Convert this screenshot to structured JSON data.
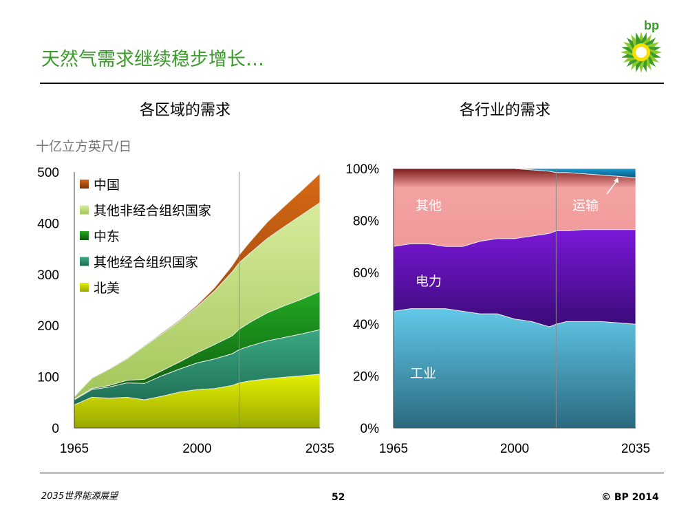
{
  "slide": {
    "title": "天然气需求继续稳步增长…",
    "page_number": "52",
    "footer_left": "2035世界能源展望",
    "footer_right": "© BP 2014",
    "logo_text": "bp"
  },
  "colors": {
    "title_green": "#3a9a2a",
    "china": "#cc5a10",
    "other_non_oecd": "#c6e28a",
    "middle_east": "#1f9a1f",
    "other_oecd": "#2f9a78",
    "north_america": "#d6e600",
    "transport": "#1a8fc0",
    "other_sector": "#f3a0a0",
    "power": "#6a10c8",
    "industry": "#5cc0e0"
  },
  "chart_data": [
    {
      "type": "area",
      "stacked": true,
      "title": "各区域的需求",
      "ylabel": "十亿立方英尺/日",
      "xlabel": "",
      "x": [
        1965,
        1970,
        1975,
        1980,
        1985,
        1990,
        1995,
        2000,
        2005,
        2010,
        2012,
        2015,
        2020,
        2025,
        2030,
        2035
      ],
      "xticks": [
        "1965",
        "2000",
        "2035"
      ],
      "ylim": [
        0,
        500
      ],
      "yticks": [
        0,
        100,
        200,
        300,
        400,
        500
      ],
      "forecast_start": 2012,
      "series": [
        {
          "name": "北美",
          "values": [
            45,
            60,
            58,
            60,
            55,
            62,
            70,
            75,
            77,
            83,
            88,
            92,
            96,
            99,
            102,
            105
          ]
        },
        {
          "name": "其他经合组织国家",
          "values": [
            10,
            15,
            22,
            28,
            32,
            40,
            45,
            52,
            58,
            62,
            65,
            68,
            74,
            78,
            82,
            87
          ]
        },
        {
          "name": "中东",
          "values": [
            1,
            2,
            3,
            5,
            8,
            10,
            14,
            20,
            28,
            35,
            40,
            46,
            55,
            62,
            68,
            75
          ]
        },
        {
          "name": "其他非经合组织国家",
          "values": [
            5,
            20,
            32,
            42,
            65,
            72,
            80,
            90,
            105,
            125,
            130,
            135,
            145,
            155,
            165,
            173
          ]
        },
        {
          "name": "中国",
          "values": [
            0,
            0,
            0,
            1,
            1,
            2,
            2,
            3,
            6,
            12,
            15,
            22,
            32,
            40,
            48,
            57
          ]
        }
      ],
      "legend": [
        "中国",
        "其他非经合组织国家",
        "中东",
        "其他经合组织国家",
        "北美"
      ]
    },
    {
      "type": "area",
      "stacked": true,
      "percent": true,
      "title": "各行业的需求",
      "xlabel": "",
      "ylabel": "",
      "x": [
        1965,
        1970,
        1975,
        1980,
        1985,
        1990,
        1995,
        2000,
        2005,
        2010,
        2012,
        2015,
        2020,
        2025,
        2030,
        2035
      ],
      "xticks": [
        "1965",
        "2000",
        "2035"
      ],
      "ylim": [
        0,
        100
      ],
      "yticks": [
        "0%",
        "20%",
        "40%",
        "60%",
        "80%",
        "100%"
      ],
      "forecast_start": 2012,
      "series": [
        {
          "name": "工业",
          "values": [
            45,
            46,
            46,
            46,
            45,
            44,
            44,
            42,
            41,
            39,
            40,
            41,
            41,
            41,
            40.5,
            40
          ]
        },
        {
          "name": "电力",
          "values": [
            25,
            25,
            25,
            24,
            25,
            28,
            29,
            31,
            33,
            36,
            36,
            35,
            35.5,
            35.5,
            36,
            36.5
          ]
        },
        {
          "name": "其他",
          "values": [
            30,
            29,
            29,
            30,
            30,
            28,
            27,
            27,
            25.5,
            24,
            22.5,
            22.5,
            21.5,
            21,
            20.5,
            20
          ]
        },
        {
          "name": "运输",
          "values": [
            0,
            0,
            0,
            0,
            0,
            0,
            0,
            0,
            0.5,
            1,
            1.5,
            1.5,
            2,
            2.5,
            3,
            3.5
          ]
        }
      ],
      "annotations": [
        "其他",
        "运输",
        "电力",
        "工业"
      ]
    }
  ]
}
